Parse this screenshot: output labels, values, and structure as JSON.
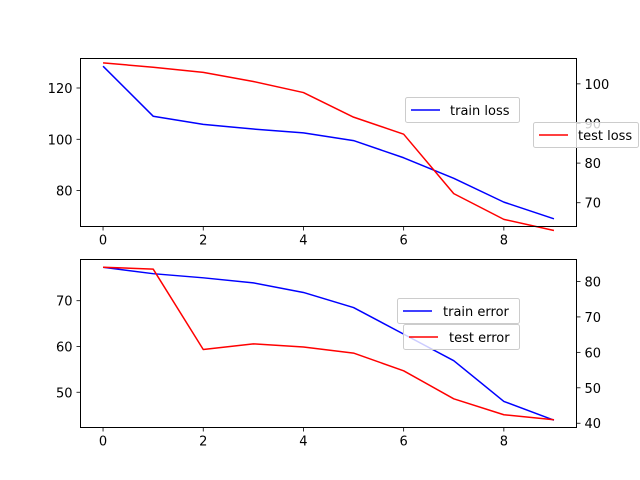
{
  "chart_data": [
    {
      "type": "line",
      "x": [
        0,
        1,
        2,
        3,
        4,
        5,
        6,
        7,
        8,
        9
      ],
      "xlim": [
        -0.45,
        9.45
      ],
      "xticks": [
        0,
        2,
        4,
        6,
        8
      ],
      "series": [
        {
          "name": "train loss",
          "axis": "left",
          "color": "#0000ff",
          "values": [
            128.5,
            109.0,
            105.8,
            104.0,
            102.5,
            99.5,
            92.8,
            84.8,
            75.5,
            69.0
          ]
        },
        {
          "name": "test loss",
          "axis": "right",
          "color": "#ff0000",
          "values": [
            105.3,
            104.2,
            102.9,
            100.6,
            97.8,
            91.6,
            87.3,
            72.3,
            65.8,
            63.0
          ]
        }
      ],
      "ylim_left": [
        66.0,
        131.5
      ],
      "yticks_left": [
        80,
        100,
        120
      ],
      "ylim_right": [
        64.0,
        106.4
      ],
      "yticks_right": [
        70,
        80,
        90,
        100
      ],
      "legends": [
        {
          "entries": [
            "train loss"
          ],
          "placement": "center-right"
        },
        {
          "entries": [
            "test loss"
          ],
          "placement": "right-outside"
        }
      ]
    },
    {
      "type": "line",
      "x": [
        0,
        1,
        2,
        3,
        4,
        5,
        6,
        7,
        8,
        9
      ],
      "xlim": [
        -0.45,
        9.45
      ],
      "xticks": [
        0,
        2,
        4,
        6,
        8
      ],
      "series": [
        {
          "name": "train error",
          "axis": "left",
          "color": "#0000ff",
          "values": [
            77.3,
            75.9,
            75.0,
            73.9,
            71.8,
            68.5,
            62.7,
            56.9,
            48.0,
            43.9
          ]
        },
        {
          "name": "test error",
          "axis": "right",
          "color": "#ff0000",
          "values": [
            84.0,
            83.5,
            60.8,
            62.4,
            61.5,
            59.8,
            54.8,
            46.9,
            42.4,
            41.0
          ]
        }
      ],
      "ylim_left": [
        42.3,
        79.0
      ],
      "yticks_left": [
        50,
        60,
        70
      ],
      "ylim_right": [
        38.8,
        86.2
      ],
      "yticks_right": [
        40,
        50,
        60,
        70,
        80
      ],
      "legends": [
        {
          "entries": [
            "train error"
          ],
          "placement": "center-right"
        },
        {
          "entries": [
            "test error"
          ],
          "placement": "center-right"
        }
      ]
    }
  ]
}
